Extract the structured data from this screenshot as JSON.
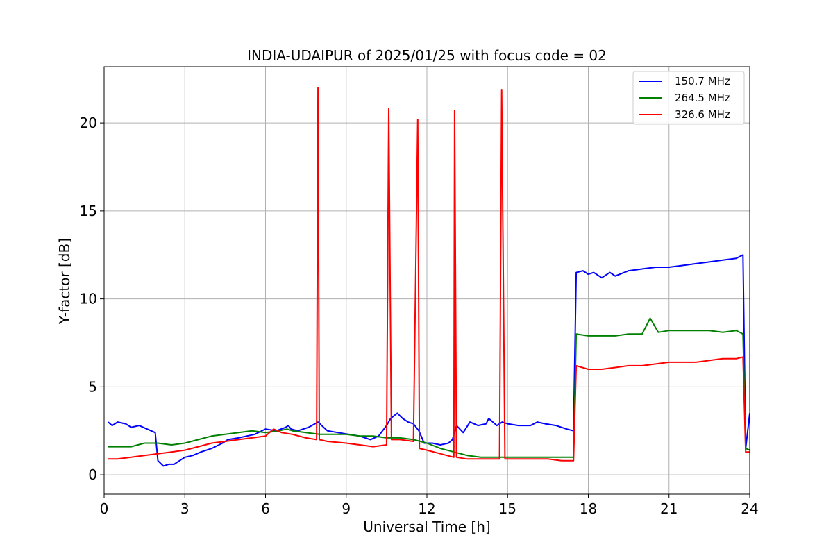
{
  "chart_data": {
    "type": "line",
    "title": "INDIA-UDAIPUR of 2025/01/25 with focus code = 02",
    "xlabel": "Universal Time [h]",
    "ylabel": "Y-factor [dB]",
    "xlim": [
      0,
      24
    ],
    "ylim": [
      -1.1,
      23.2
    ],
    "xticks": [
      0,
      3,
      6,
      9,
      12,
      15,
      18,
      21,
      24
    ],
    "yticks": [
      0,
      5,
      10,
      15,
      20
    ],
    "grid": true,
    "legend_position": "top-right",
    "series": [
      {
        "name": "150.7 MHz",
        "color": "#0000ff",
        "x": [
          0.15,
          0.3,
          0.5,
          0.8,
          1.0,
          1.3,
          1.6,
          1.9,
          2.0,
          2.2,
          2.4,
          2.6,
          2.8,
          3.0,
          3.3,
          3.6,
          4.0,
          4.4,
          4.6,
          5.0,
          5.3,
          5.6,
          6.0,
          6.4,
          6.75,
          6.85,
          6.95,
          7.2,
          7.6,
          7.95,
          8.3,
          8.7,
          9.1,
          9.5,
          9.9,
          10.2,
          10.5,
          10.65,
          10.9,
          11.1,
          11.3,
          11.5,
          11.7,
          11.9,
          12.2,
          12.5,
          12.8,
          12.95,
          13.1,
          13.35,
          13.6,
          13.9,
          14.2,
          14.3,
          14.6,
          14.8,
          15.0,
          15.4,
          15.85,
          16.1,
          16.4,
          16.8,
          17.2,
          17.45,
          17.55,
          17.8,
          18.0,
          18.2,
          18.5,
          18.8,
          19.0,
          19.5,
          20.0,
          20.5,
          21.0,
          21.5,
          22.0,
          22.5,
          23.0,
          23.5,
          23.75,
          23.85,
          24.0
        ],
        "y": [
          3.0,
          2.8,
          3.0,
          2.9,
          2.7,
          2.8,
          2.6,
          2.4,
          0.8,
          0.5,
          0.6,
          0.6,
          0.8,
          1.0,
          1.1,
          1.3,
          1.5,
          1.8,
          2.0,
          2.1,
          2.2,
          2.3,
          2.6,
          2.5,
          2.7,
          2.8,
          2.6,
          2.5,
          2.7,
          3.0,
          2.5,
          2.4,
          2.3,
          2.2,
          2.0,
          2.2,
          2.8,
          3.2,
          3.5,
          3.2,
          3.0,
          2.9,
          2.5,
          1.8,
          1.8,
          1.7,
          1.8,
          2.0,
          2.8,
          2.4,
          3.0,
          2.8,
          2.9,
          3.2,
          2.8,
          3.0,
          2.9,
          2.8,
          2.8,
          3.0,
          2.9,
          2.8,
          2.6,
          2.5,
          11.5,
          11.6,
          11.4,
          11.5,
          11.2,
          11.5,
          11.3,
          11.6,
          11.7,
          11.8,
          11.8,
          11.9,
          12.0,
          12.1,
          12.2,
          12.3,
          12.5,
          1.5,
          3.5
        ]
      },
      {
        "name": "264.5 MHz",
        "color": "#008000",
        "x": [
          0.15,
          0.5,
          1.0,
          1.5,
          2.0,
          2.5,
          3.0,
          3.5,
          4.0,
          4.5,
          5.0,
          5.5,
          6.0,
          6.5,
          6.8,
          7.0,
          7.5,
          8.0,
          8.5,
          9.0,
          9.5,
          10.0,
          10.5,
          11.0,
          11.5,
          12.0,
          12.5,
          13.0,
          13.5,
          14.0,
          14.5,
          15.0,
          15.5,
          16.0,
          16.5,
          17.0,
          17.45,
          17.55,
          18.0,
          18.5,
          19.0,
          19.5,
          20.0,
          20.3,
          20.6,
          21.0,
          21.5,
          22.0,
          22.5,
          23.0,
          23.5,
          23.75,
          23.85,
          24.0
        ],
        "y": [
          1.6,
          1.6,
          1.6,
          1.8,
          1.8,
          1.7,
          1.8,
          2.0,
          2.2,
          2.3,
          2.4,
          2.5,
          2.4,
          2.5,
          2.6,
          2.5,
          2.4,
          2.3,
          2.3,
          2.3,
          2.2,
          2.2,
          2.1,
          2.1,
          2.0,
          1.8,
          1.5,
          1.3,
          1.1,
          1.0,
          1.0,
          1.0,
          1.0,
          1.0,
          1.0,
          1.0,
          1.0,
          8.0,
          7.9,
          7.9,
          7.9,
          8.0,
          8.0,
          8.9,
          8.1,
          8.2,
          8.2,
          8.2,
          8.2,
          8.1,
          8.2,
          8.0,
          1.5,
          1.4
        ]
      },
      {
        "name": "326.6 MHz",
        "color": "#ff0000",
        "x": [
          0.15,
          0.5,
          1.0,
          1.5,
          2.0,
          2.5,
          3.0,
          3.5,
          4.0,
          4.5,
          5.0,
          5.5,
          6.0,
          6.3,
          6.6,
          7.0,
          7.5,
          7.9,
          7.95,
          8.0,
          8.3,
          9.0,
          9.5,
          10.0,
          10.5,
          10.58,
          10.68,
          11.0,
          11.5,
          11.66,
          11.72,
          12.0,
          12.5,
          13.0,
          13.03,
          13.1,
          13.5,
          14.0,
          14.7,
          14.78,
          14.9,
          15.5,
          16.0,
          16.5,
          17.0,
          17.45,
          17.55,
          18.0,
          18.5,
          19.0,
          19.5,
          20.0,
          20.5,
          21.0,
          21.5,
          22.0,
          22.5,
          23.0,
          23.5,
          23.75,
          23.85,
          24.0
        ],
        "y": [
          0.9,
          0.9,
          1.0,
          1.1,
          1.2,
          1.3,
          1.4,
          1.6,
          1.8,
          1.9,
          2.0,
          2.1,
          2.2,
          2.6,
          2.4,
          2.3,
          2.1,
          2.0,
          22.0,
          2.0,
          1.9,
          1.8,
          1.7,
          1.6,
          1.7,
          20.8,
          2.0,
          2.0,
          1.9,
          20.2,
          1.5,
          1.4,
          1.2,
          1.0,
          20.7,
          1.0,
          0.9,
          0.9,
          0.9,
          21.9,
          0.9,
          0.9,
          0.9,
          0.9,
          0.8,
          0.8,
          6.2,
          6.0,
          6.0,
          6.1,
          6.2,
          6.2,
          6.3,
          6.4,
          6.4,
          6.4,
          6.5,
          6.6,
          6.6,
          6.7,
          1.3,
          1.3
        ]
      }
    ]
  }
}
